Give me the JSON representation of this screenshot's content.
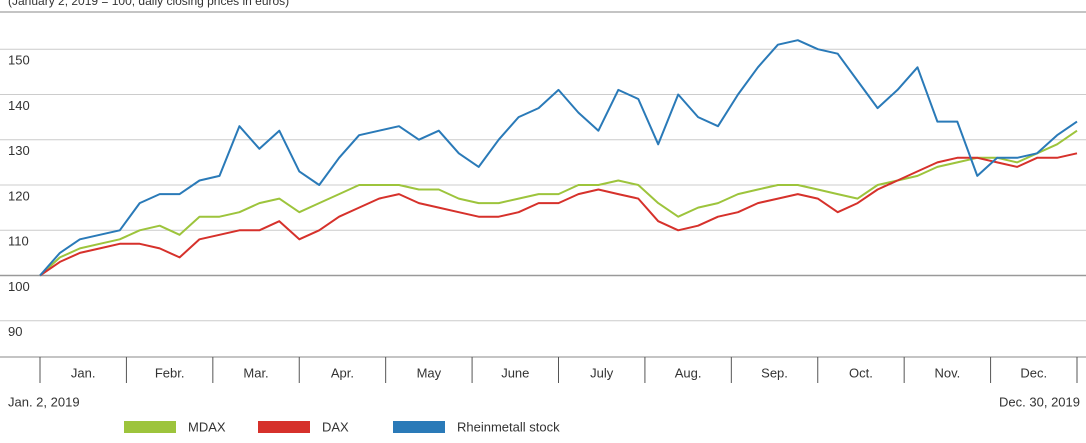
{
  "chart_data": {
    "type": "line",
    "subtitle": "(January 2, 2019 = 100; daily closing prices in euros)",
    "months": [
      "Jan.",
      "Febr.",
      "Mar.",
      "Apr.",
      "May",
      "June",
      "July",
      "Aug.",
      "Sep.",
      "Oct.",
      "Nov.",
      "Dec."
    ],
    "start_label": "Jan. 2, 2019",
    "end_label": "Dec. 30, 2019",
    "ylim": [
      82,
      158
    ],
    "yticks": [
      90,
      100,
      110,
      120,
      130,
      140,
      150
    ],
    "grid": true,
    "series": [
      {
        "name": "MDAX",
        "color": "#9dc43c",
        "values": [
          100,
          104,
          106,
          107,
          108,
          110,
          111,
          109,
          113,
          113,
          114,
          116,
          117,
          114,
          116,
          118,
          120,
          120,
          120,
          119,
          119,
          117,
          116,
          116,
          117,
          118,
          118,
          120,
          120,
          121,
          120,
          116,
          113,
          115,
          116,
          118,
          119,
          120,
          120,
          119,
          118,
          117,
          120,
          121,
          122,
          124,
          125,
          126,
          126,
          125,
          127,
          129,
          132
        ]
      },
      {
        "name": "DAX",
        "color": "#d6312b",
        "values": [
          100,
          103,
          105,
          106,
          107,
          107,
          106,
          104,
          108,
          109,
          110,
          110,
          112,
          108,
          110,
          113,
          115,
          117,
          118,
          116,
          115,
          114,
          113,
          113,
          114,
          116,
          116,
          118,
          119,
          118,
          117,
          112,
          110,
          111,
          113,
          114,
          116,
          117,
          118,
          117,
          114,
          116,
          119,
          121,
          123,
          125,
          126,
          126,
          125,
          124,
          126,
          126,
          127
        ]
      },
      {
        "name": "Rheinmetall stock",
        "color": "#2a7ab8",
        "values": [
          100,
          105,
          108,
          109,
          110,
          116,
          118,
          118,
          121,
          122,
          133,
          128,
          132,
          123,
          120,
          126,
          131,
          132,
          133,
          130,
          132,
          127,
          124,
          130,
          135,
          137,
          141,
          136,
          132,
          141,
          139,
          129,
          140,
          135,
          133,
          140,
          146,
          151,
          152,
          150,
          149,
          143,
          137,
          141,
          146,
          134,
          134,
          122,
          126,
          126,
          127,
          131,
          134
        ]
      }
    ]
  }
}
